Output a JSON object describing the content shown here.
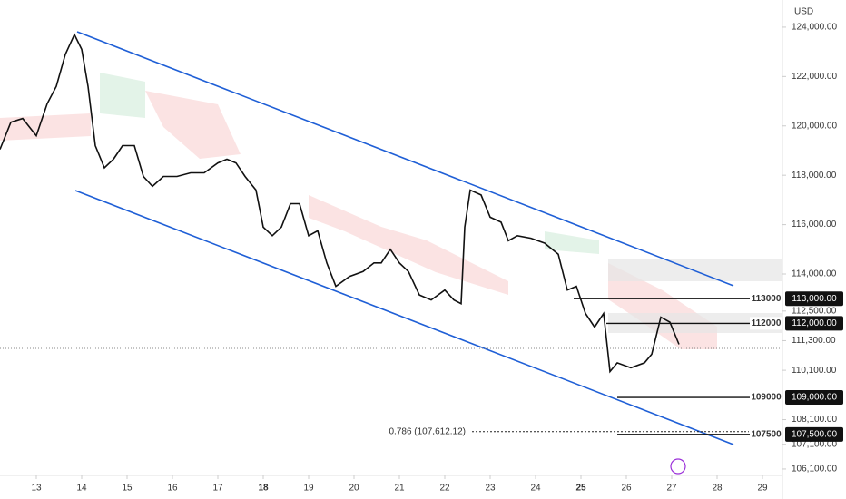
{
  "chart_data": {
    "type": "line",
    "currency": "USD",
    "color": "#111111",
    "xlim": [
      12.2,
      29.44
    ],
    "xticks": [
      13,
      14,
      15,
      16,
      17,
      18,
      19,
      20,
      21,
      22,
      23,
      24,
      25,
      26,
      27,
      28,
      29
    ],
    "xticks_bold": [
      18,
      25
    ],
    "ylim": [
      105620,
      125100
    ],
    "yticks": [
      {
        "value": 106100,
        "label": "106,100.00"
      },
      {
        "value": 107100,
        "label": "107,100.00"
      },
      {
        "value": 108100,
        "label": "108,100.00"
      },
      {
        "value": 110100,
        "label": "110,100.00"
      },
      {
        "value": 111300,
        "label": "111,300.00"
      },
      {
        "value": 112500,
        "label": "112,500.00"
      },
      {
        "value": 114000,
        "label": "114,000.00"
      },
      {
        "value": 116000,
        "label": "116,000.00"
      },
      {
        "value": 118000,
        "label": "118,000.00"
      },
      {
        "value": 120000,
        "label": "120,000.00"
      },
      {
        "value": 122000,
        "label": "122,000.00"
      },
      {
        "value": 124000,
        "label": "124,000.00"
      }
    ],
    "x": [
      12.2,
      12.44,
      12.7,
      13,
      13.24,
      13.44,
      13.64,
      13.84,
      14,
      14.14,
      14.3,
      14.5,
      14.7,
      14.9,
      15.16,
      15.36,
      15.56,
      15.8,
      16.1,
      16.4,
      16.7,
      17,
      17.2,
      17.4,
      17.6,
      17.84,
      18,
      18.2,
      18.4,
      18.6,
      18.8,
      19,
      19.2,
      19.4,
      19.6,
      19.9,
      20.2,
      20.44,
      20.6,
      20.8,
      21,
      21.2,
      21.44,
      21.7,
      22,
      22.2,
      22.36,
      22.44,
      22.56,
      22.8,
      23,
      23.24,
      23.4,
      23.6,
      23.9,
      24.2,
      24.5,
      24.7,
      24.9,
      25.1,
      25.3,
      25.5,
      25.64,
      25.8,
      26.1,
      26.4,
      26.56,
      26.76,
      26.96,
      27.16
    ],
    "values": [
      119050,
      120150,
      120300,
      119600,
      120900,
      121600,
      122900,
      123700,
      123100,
      121600,
      119200,
      118300,
      118650,
      119200,
      119200,
      117950,
      117550,
      117950,
      117950,
      118100,
      118100,
      118500,
      118650,
      118500,
      117950,
      117400,
      115900,
      115550,
      115900,
      116850,
      116850,
      115550,
      115750,
      114450,
      113500,
      113900,
      114100,
      114450,
      114450,
      115000,
      114450,
      114100,
      113150,
      112950,
      113350,
      112950,
      112800,
      115900,
      117400,
      117200,
      116300,
      116100,
      115350,
      115550,
      115450,
      115250,
      114800,
      113350,
      113500,
      112400,
      111850,
      112400,
      110050,
      110400,
      110200,
      110400,
      110750,
      112250,
      112050,
      111150
    ],
    "levels": [
      {
        "value": 113000,
        "label": "113,000.00"
      },
      {
        "value": 112000,
        "label": "112,000.00"
      },
      {
        "value": 109000,
        "label": "109,000.00"
      },
      {
        "value": 107500,
        "label": "107,500.00"
      }
    ],
    "fib": {
      "value": 107612.12,
      "label": "0.786 (107,612.12)"
    }
  }
}
